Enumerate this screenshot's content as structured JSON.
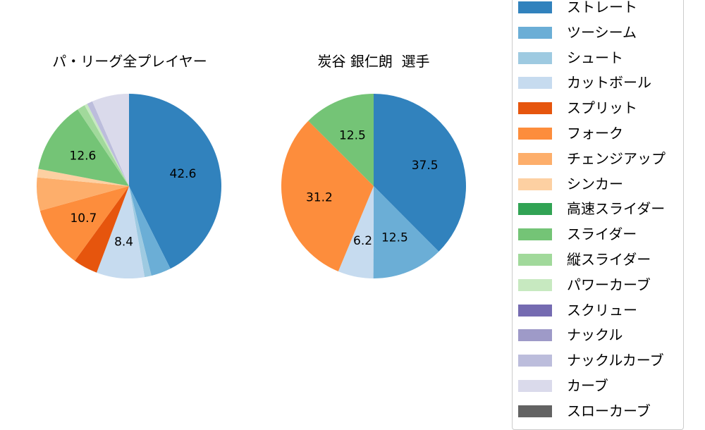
{
  "chart_data": [
    {
      "type": "pie",
      "title": "パ・リーグ全プレイヤー",
      "center": [
        183,
        264
      ],
      "radius": 131,
      "start_angle_deg": 90,
      "direction": "clockwise",
      "slices": [
        {
          "label": "ストレート",
          "value": 42.6,
          "color": "#3182bd",
          "show_label": true
        },
        {
          "label": "ツーシーム",
          "value": 3.5,
          "color": "#6baed6",
          "show_label": false
        },
        {
          "label": "シュート",
          "value": 1.2,
          "color": "#9ecae1",
          "show_label": false
        },
        {
          "label": "カットボール",
          "value": 8.4,
          "color": "#c6dbef",
          "show_label": true
        },
        {
          "label": "スプリット",
          "value": 4.3,
          "color": "#e6550d",
          "show_label": false
        },
        {
          "label": "フォーク",
          "value": 10.7,
          "color": "#fd8d3c",
          "show_label": true
        },
        {
          "label": "チェンジアップ",
          "value": 5.8,
          "color": "#fdae6b",
          "show_label": false
        },
        {
          "label": "シンカー",
          "value": 1.5,
          "color": "#fdd0a2",
          "show_label": false
        },
        {
          "label": "高速スライダー",
          "value": 0.0,
          "color": "#31a354",
          "show_label": false
        },
        {
          "label": "スライダー",
          "value": 12.6,
          "color": "#74c476",
          "show_label": true
        },
        {
          "label": "縦スライダー",
          "value": 1.4,
          "color": "#a1d99b",
          "show_label": false
        },
        {
          "label": "パワーカーブ",
          "value": 0.5,
          "color": "#c7e9c0",
          "show_label": false
        },
        {
          "label": "スクリュー",
          "value": 0.0,
          "color": "#756bb1",
          "show_label": false
        },
        {
          "label": "ナックル",
          "value": 0.0,
          "color": "#9e9ac8",
          "show_label": false
        },
        {
          "label": "ナックルカーブ",
          "value": 1.0,
          "color": "#bcbddc",
          "show_label": false
        },
        {
          "label": "カーブ",
          "value": 6.5,
          "color": "#dadaeb",
          "show_label": false
        },
        {
          "label": "スローカーブ",
          "value": 0.0,
          "color": "#636363",
          "show_label": false
        }
      ]
    },
    {
      "type": "pie",
      "title": "炭谷 銀仁朗  選手",
      "center": [
        530,
        264
      ],
      "radius": 131,
      "start_angle_deg": 90,
      "direction": "clockwise",
      "slices": [
        {
          "label": "ストレート",
          "value": 37.5,
          "color": "#3182bd",
          "show_label": true
        },
        {
          "label": "ツーシーム",
          "value": 12.5,
          "color": "#6baed6",
          "show_label": true
        },
        {
          "label": "カットボール",
          "value": 6.2,
          "color": "#c6dbef",
          "show_label": true
        },
        {
          "label": "フォーク",
          "value": 31.2,
          "color": "#fd8d3c",
          "show_label": true
        },
        {
          "label": "スライダー",
          "value": 12.5,
          "color": "#74c476",
          "show_label": true
        }
      ]
    }
  ],
  "legend": {
    "items": [
      {
        "label": "ストレート",
        "color": "#3182bd"
      },
      {
        "label": "ツーシーム",
        "color": "#6baed6"
      },
      {
        "label": "シュート",
        "color": "#9ecae1"
      },
      {
        "label": "カットボール",
        "color": "#c6dbef"
      },
      {
        "label": "スプリット",
        "color": "#e6550d"
      },
      {
        "label": "フォーク",
        "color": "#fd8d3c"
      },
      {
        "label": "チェンジアップ",
        "color": "#fdae6b"
      },
      {
        "label": "シンカー",
        "color": "#fdd0a2"
      },
      {
        "label": "高速スライダー",
        "color": "#31a354"
      },
      {
        "label": "スライダー",
        "color": "#74c476"
      },
      {
        "label": "縦スライダー",
        "color": "#a1d99b"
      },
      {
        "label": "パワーカーブ",
        "color": "#c7e9c0"
      },
      {
        "label": "スクリュー",
        "color": "#756bb1"
      },
      {
        "label": "ナックル",
        "color": "#9e9ac8"
      },
      {
        "label": "ナックルカーブ",
        "color": "#bcbddc"
      },
      {
        "label": "カーブ",
        "color": "#dadaeb"
      },
      {
        "label": "スローカーブ",
        "color": "#636363"
      }
    ]
  },
  "titles": {
    "left": "パ・リーグ全プレイヤー",
    "right": "炭谷 銀仁朗  選手"
  }
}
